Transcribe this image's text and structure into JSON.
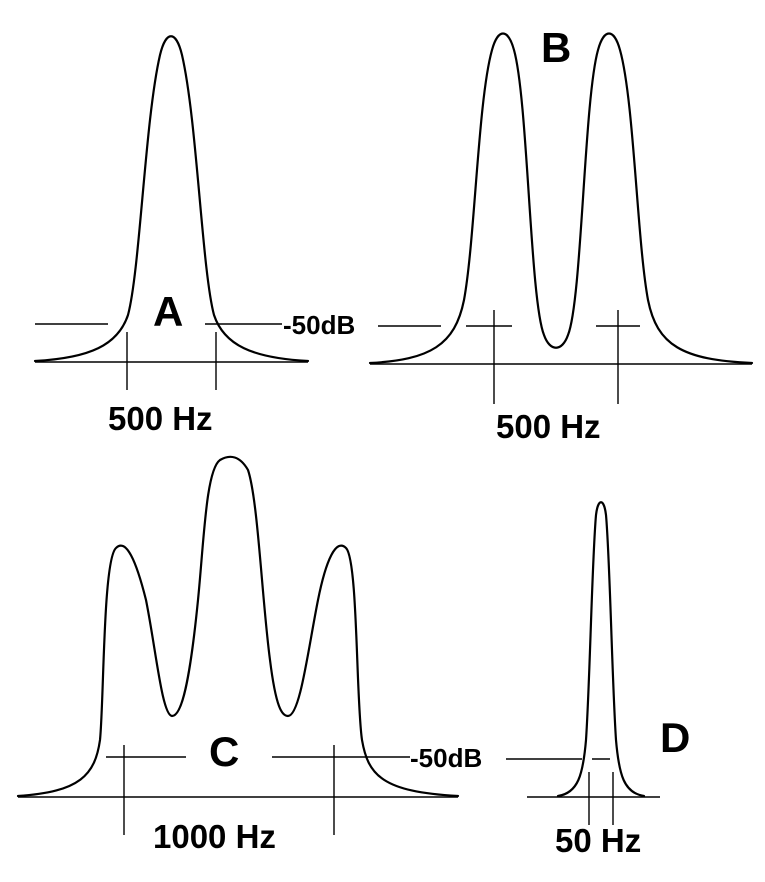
{
  "panels": {
    "a": {
      "letter": "A",
      "width_label": "500 Hz"
    },
    "b": {
      "letter": "B",
      "width_label": "500 Hz"
    },
    "c": {
      "letter": "C",
      "width_label": "1000 Hz"
    },
    "d": {
      "letter": "D",
      "width_label": "50 Hz"
    }
  },
  "level_top": "-50dB",
  "level_bottom": "-50dB",
  "colors": {
    "ink": "#000000",
    "background": "#ffffff"
  }
}
